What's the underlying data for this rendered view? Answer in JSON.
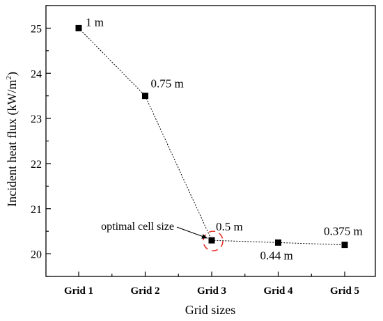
{
  "chart_data": {
    "type": "line",
    "categories": [
      "Grid 1",
      "Grid 2",
      "Grid 3",
      "Grid 4",
      "Grid 5"
    ],
    "series": [
      {
        "values": [
          25.0,
          23.5,
          20.3,
          20.25,
          20.2
        ],
        "point_labels": [
          "1 m",
          "0.75 m",
          "0.5 m",
          "0.44 m",
          "0.375 m"
        ],
        "marker": "square",
        "line_style": "dotted",
        "color": "#000000"
      }
    ],
    "xlabel": "Grid sizes",
    "ylabel": "Incident heat flux (kW/m",
    "ylabel_superscript": "2",
    "ylabel_close": ")",
    "ylim": [
      19.5,
      25.5
    ],
    "yticks": [
      20,
      21,
      22,
      23,
      24,
      25
    ],
    "grid": false,
    "annotation": {
      "text": "optimal cell size",
      "target_category": "Grid 3",
      "highlight_color": "#e8332a"
    }
  }
}
